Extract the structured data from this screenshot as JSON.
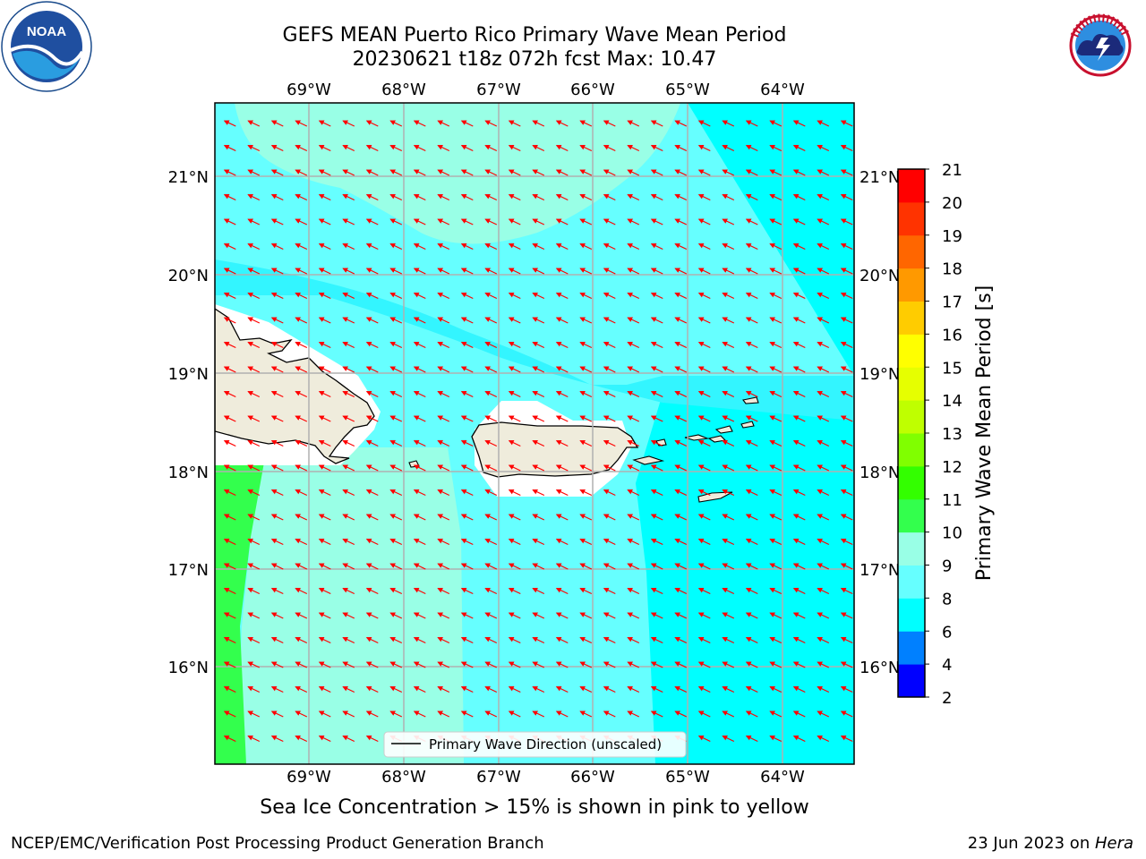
{
  "header": {
    "title_line1": "GEFS MEAN Puerto Rico Primary Wave Mean Period",
    "title_line2": "20230621 t18z 072h fcst   Max: 10.47"
  },
  "logos": {
    "left": {
      "text": "NOAA",
      "ring_text": "NATIONAL OCEANIC AND ATMOSPHERIC ADMINISTRATION · U.S. DEPARTMENT OF COMMERCE"
    },
    "right": {
      "ring_text": "NATIONAL WEATHER SERVICE"
    }
  },
  "map": {
    "lon_labels": [
      "69°W",
      "68°W",
      "67°W",
      "66°W",
      "65°W",
      "64°W"
    ],
    "lat_labels": [
      "21°N",
      "20°N",
      "19°N",
      "18°N",
      "17°N",
      "16°N"
    ],
    "legend_label": "Primary Wave Direction (unscaled)",
    "arrow_color": "#ff0000",
    "land_color": "#efecdc"
  },
  "colorbar": {
    "label": "Primary Wave Mean Period [s]",
    "ticks": [
      "2",
      "4",
      "6",
      "8",
      "9",
      "10",
      "11",
      "12",
      "13",
      "14",
      "15",
      "16",
      "17",
      "18",
      "19",
      "20",
      "21"
    ],
    "colors": [
      "#0000ff",
      "#0080ff",
      "#00ffff",
      "#66ffff",
      "#99ffe6",
      "#33ff4d",
      "#33ff00",
      "#80ff00",
      "#bfff00",
      "#e6ff00",
      "#ffff00",
      "#ffcc00",
      "#ff9900",
      "#ff6600",
      "#ff3300",
      "#ff0000"
    ]
  },
  "caption": "Sea Ice Concentration > 15% is shown in pink to yellow",
  "footer": {
    "left": "NCEP/EMC/Verification Post Processing Product Generation Branch",
    "right_date": "23 Jun 2023 on ",
    "right_host": "Hera"
  }
}
